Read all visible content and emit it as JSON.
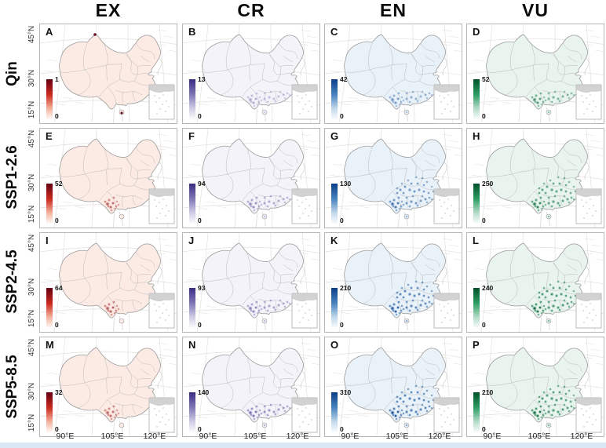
{
  "figure": {
    "column_headers": [
      "EX",
      "CR",
      "EN",
      "VU"
    ],
    "row_labels": [
      "Qin",
      "SSP1-2.6",
      "SSP2-4.5",
      "SSP5-8.5"
    ],
    "lat_ticks": [
      "45°N",
      "30°N",
      "15°N"
    ],
    "lon_ticks": [
      "90°E",
      "105°E",
      "120°E"
    ],
    "colorbar_min_label": "0",
    "panels": [
      {
        "letter": "A",
        "row": "Qin",
        "column": "EX",
        "max": "1",
        "spread": "dots",
        "density": 1
      },
      {
        "letter": "B",
        "row": "Qin",
        "column": "CR",
        "max": "13",
        "spread": "south",
        "density": 0.35
      },
      {
        "letter": "C",
        "row": "Qin",
        "column": "EN",
        "max": "42",
        "spread": "south",
        "density": 0.5
      },
      {
        "letter": "D",
        "row": "Qin",
        "column": "VU",
        "max": "52",
        "spread": "south",
        "density": 0.6
      },
      {
        "letter": "E",
        "row": "SSP1-2.6",
        "column": "EX",
        "max": "52",
        "spread": "sw",
        "density": 0.5
      },
      {
        "letter": "F",
        "row": "SSP1-2.6",
        "column": "CR",
        "max": "94",
        "spread": "south",
        "density": 0.5
      },
      {
        "letter": "G",
        "row": "SSP1-2.6",
        "column": "EN",
        "max": "130",
        "spread": "broad",
        "density": 0.7
      },
      {
        "letter": "H",
        "row": "SSP1-2.6",
        "column": "VU",
        "max": "250",
        "spread": "broad",
        "density": 0.75
      },
      {
        "letter": "I",
        "row": "SSP2-4.5",
        "column": "EX",
        "max": "64",
        "spread": "sw",
        "density": 0.55
      },
      {
        "letter": "J",
        "row": "SSP2-4.5",
        "column": "CR",
        "max": "93",
        "spread": "south",
        "density": 0.55
      },
      {
        "letter": "K",
        "row": "SSP2-4.5",
        "column": "EN",
        "max": "210",
        "spread": "broad",
        "density": 0.85
      },
      {
        "letter": "L",
        "row": "SSP2-4.5",
        "column": "VU",
        "max": "240",
        "spread": "broad",
        "density": 0.85
      },
      {
        "letter": "M",
        "row": "SSP5-8.5",
        "column": "EX",
        "max": "32",
        "spread": "sw",
        "density": 0.5
      },
      {
        "letter": "N",
        "row": "SSP5-8.5",
        "column": "CR",
        "max": "140",
        "spread": "south",
        "density": 0.65
      },
      {
        "letter": "O",
        "row": "SSP5-8.5",
        "column": "EN",
        "max": "310",
        "spread": "broad",
        "density": 0.9
      },
      {
        "letter": "P",
        "row": "SSP5-8.5",
        "column": "VU",
        "max": "210",
        "spread": "broad",
        "density": 0.85
      }
    ],
    "color_schemes": {
      "EX": {
        "dark": "#640012",
        "mid": "#cb2a1d",
        "light": "#f5b29e",
        "tint": "#fcebe4"
      },
      "CR": {
        "dark": "#3b2b80",
        "mid": "#8078b8",
        "light": "#d0cde6",
        "tint": "#f4f3fa"
      },
      "EN": {
        "dark": "#0a3d87",
        "mid": "#4a84bf",
        "light": "#c2d8eb",
        "tint": "#eaf2f9"
      },
      "VU": {
        "dark": "#00502a",
        "mid": "#2f9e64",
        "light": "#b5dcca",
        "tint": "#e9f4ee"
      }
    },
    "bottom_strip_color": "#d9e6f3"
  }
}
